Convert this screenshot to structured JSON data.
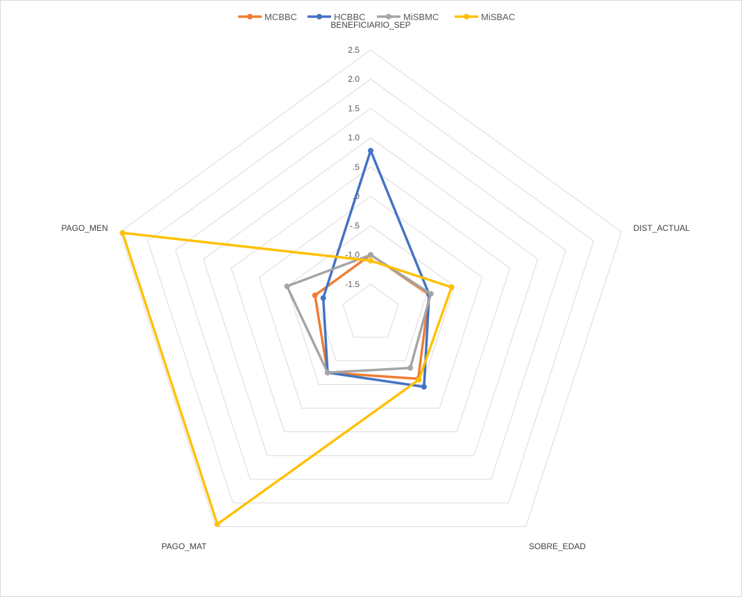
{
  "chart_data": {
    "type": "radar",
    "title": "",
    "axes": [
      "BENEFICIARIO_SEP",
      "DIST_ACTUAL",
      "SOBRE_EDAD",
      "PAGO_MAT",
      "PAGO_MEN"
    ],
    "rlim": [
      -2.0,
      2.5
    ],
    "ticks": [
      -1.5,
      -1.0,
      -0.5,
      0.0,
      0.5,
      1.0,
      1.5,
      2.0,
      2.5
    ],
    "tick_labels": [
      "-1.5",
      "-1.0",
      "-.5",
      ".0",
      ".5",
      "1.0",
      "1.5",
      "2.0",
      "2.5"
    ],
    "grid": true,
    "legend": "top",
    "series": [
      {
        "name": "MCBBC",
        "color": "#ED7D31",
        "values": [
          -1.0,
          -0.95,
          -0.62,
          -0.75,
          -1.0
        ]
      },
      {
        "name": "HCBBC",
        "color": "#4472C4",
        "values": [
          0.78,
          -0.95,
          -0.45,
          -0.75,
          -1.15
        ]
      },
      {
        "name": "MiSBMC",
        "color": "#A5A5A5",
        "values": [
          -1.0,
          -0.92,
          -0.85,
          -0.75,
          -0.5
        ]
      },
      {
        "name": "MiSBAC",
        "color": "#FFC000",
        "values": [
          -1.1,
          -0.55,
          -0.6,
          2.45,
          2.45
        ]
      }
    ]
  }
}
